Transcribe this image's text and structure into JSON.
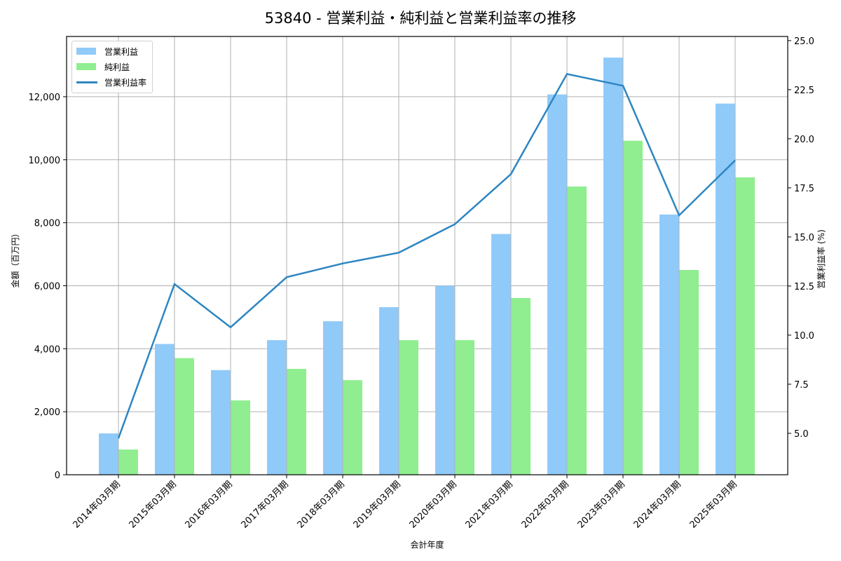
{
  "title": "53840 - 営業利益・純利益と営業利益率の推移",
  "legend": {
    "items": [
      {
        "label": "営業利益",
        "type": "bar",
        "color": "#90CAF9"
      },
      {
        "label": "純利益",
        "type": "bar",
        "color": "#90EE90"
      },
      {
        "label": "営業利益率",
        "type": "line",
        "color": "#2E86C1"
      }
    ]
  },
  "axes": {
    "xlabel": "会計年度",
    "ylabel_left": "金額（百万円）",
    "ylabel_right": "営業利益率 (%)",
    "left_ticks": [
      "0",
      "2,000",
      "4,000",
      "6,000",
      "8,000",
      "10,000",
      "12,000"
    ],
    "right_ticks": [
      "5.0",
      "7.5",
      "10.0",
      "12.5",
      "15.0",
      "17.5",
      "20.0",
      "22.5",
      "25.0"
    ]
  },
  "chart_data": {
    "type": "bar",
    "title": "53840 - 営業利益・純利益と営業利益率の推移",
    "xlabel": "会計年度",
    "ylabel": "金額（百万円）",
    "ylabel_right": "営業利益率 (%)",
    "categories": [
      "2014年03月期",
      "2015年03月期",
      "2016年03月期",
      "2017年03月期",
      "2018年03月期",
      "2019年03月期",
      "2020年03月期",
      "2021年03月期",
      "2022年03月期",
      "2023年03月期",
      "2024年03月期",
      "2025年03月期"
    ],
    "series": [
      {
        "name": "営業利益",
        "type": "bar",
        "axis": "left",
        "color": "#90CAF9",
        "values": [
          1310,
          4150,
          3320,
          4270,
          4870,
          5320,
          6000,
          7640,
          12070,
          13240,
          8260,
          11780
        ]
      },
      {
        "name": "純利益",
        "type": "bar",
        "axis": "left",
        "color": "#90EE90",
        "values": [
          800,
          3700,
          2360,
          3360,
          3000,
          4270,
          4270,
          5610,
          9150,
          10600,
          6500,
          9440
        ]
      },
      {
        "name": "営業利益率",
        "type": "line",
        "axis": "right",
        "color": "#2E86C1",
        "values": [
          4.75,
          12.6,
          10.4,
          12.95,
          13.65,
          14.2,
          15.65,
          18.2,
          23.3,
          22.7,
          16.1,
          18.9
        ]
      }
    ],
    "ylim": [
      0,
      13913
    ],
    "ylim_right": [
      2.89,
      25.21
    ],
    "grid": true,
    "legend_position": "upper left"
  }
}
